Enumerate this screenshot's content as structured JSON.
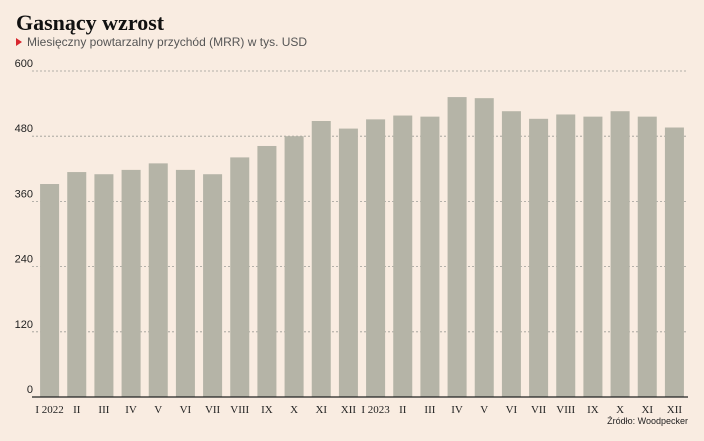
{
  "header": {
    "title": "Gasnący wzrost",
    "subtitle": "Miesięczny powtarzalny przychód (MRR) w tys. USD"
  },
  "footer": {
    "source": "Źródło: Woodpecker"
  },
  "colors": {
    "background": "#f9ece1",
    "bar": "#b5b4a7",
    "grid": "#9d9d97",
    "axis": "#222222",
    "marker": "#d8262e"
  },
  "chart_data": {
    "type": "bar",
    "title": "Gasnący wzrost",
    "subtitle": "Miesięczny powtarzalny przychód (MRR) w tys. USD",
    "xlabel": "",
    "ylabel": "",
    "ylim": [
      0,
      600
    ],
    "yticks": [
      0,
      120,
      240,
      360,
      480,
      600
    ],
    "grid": true,
    "legend": "none",
    "categories": [
      "I 2022",
      "II",
      "III",
      "IV",
      "V",
      "VI",
      "VII",
      "VIII",
      "IX",
      "X",
      "XI",
      "XII",
      "I 2023",
      "II",
      "III",
      "IV",
      "V",
      "VI",
      "VII",
      "VIII",
      "IX",
      "X",
      "XI",
      "XII"
    ],
    "values": [
      392,
      414,
      410,
      418,
      430,
      418,
      410,
      441,
      462,
      480,
      508,
      494,
      511,
      518,
      516,
      552,
      550,
      526,
      512,
      520,
      516,
      526,
      516,
      496
    ]
  }
}
